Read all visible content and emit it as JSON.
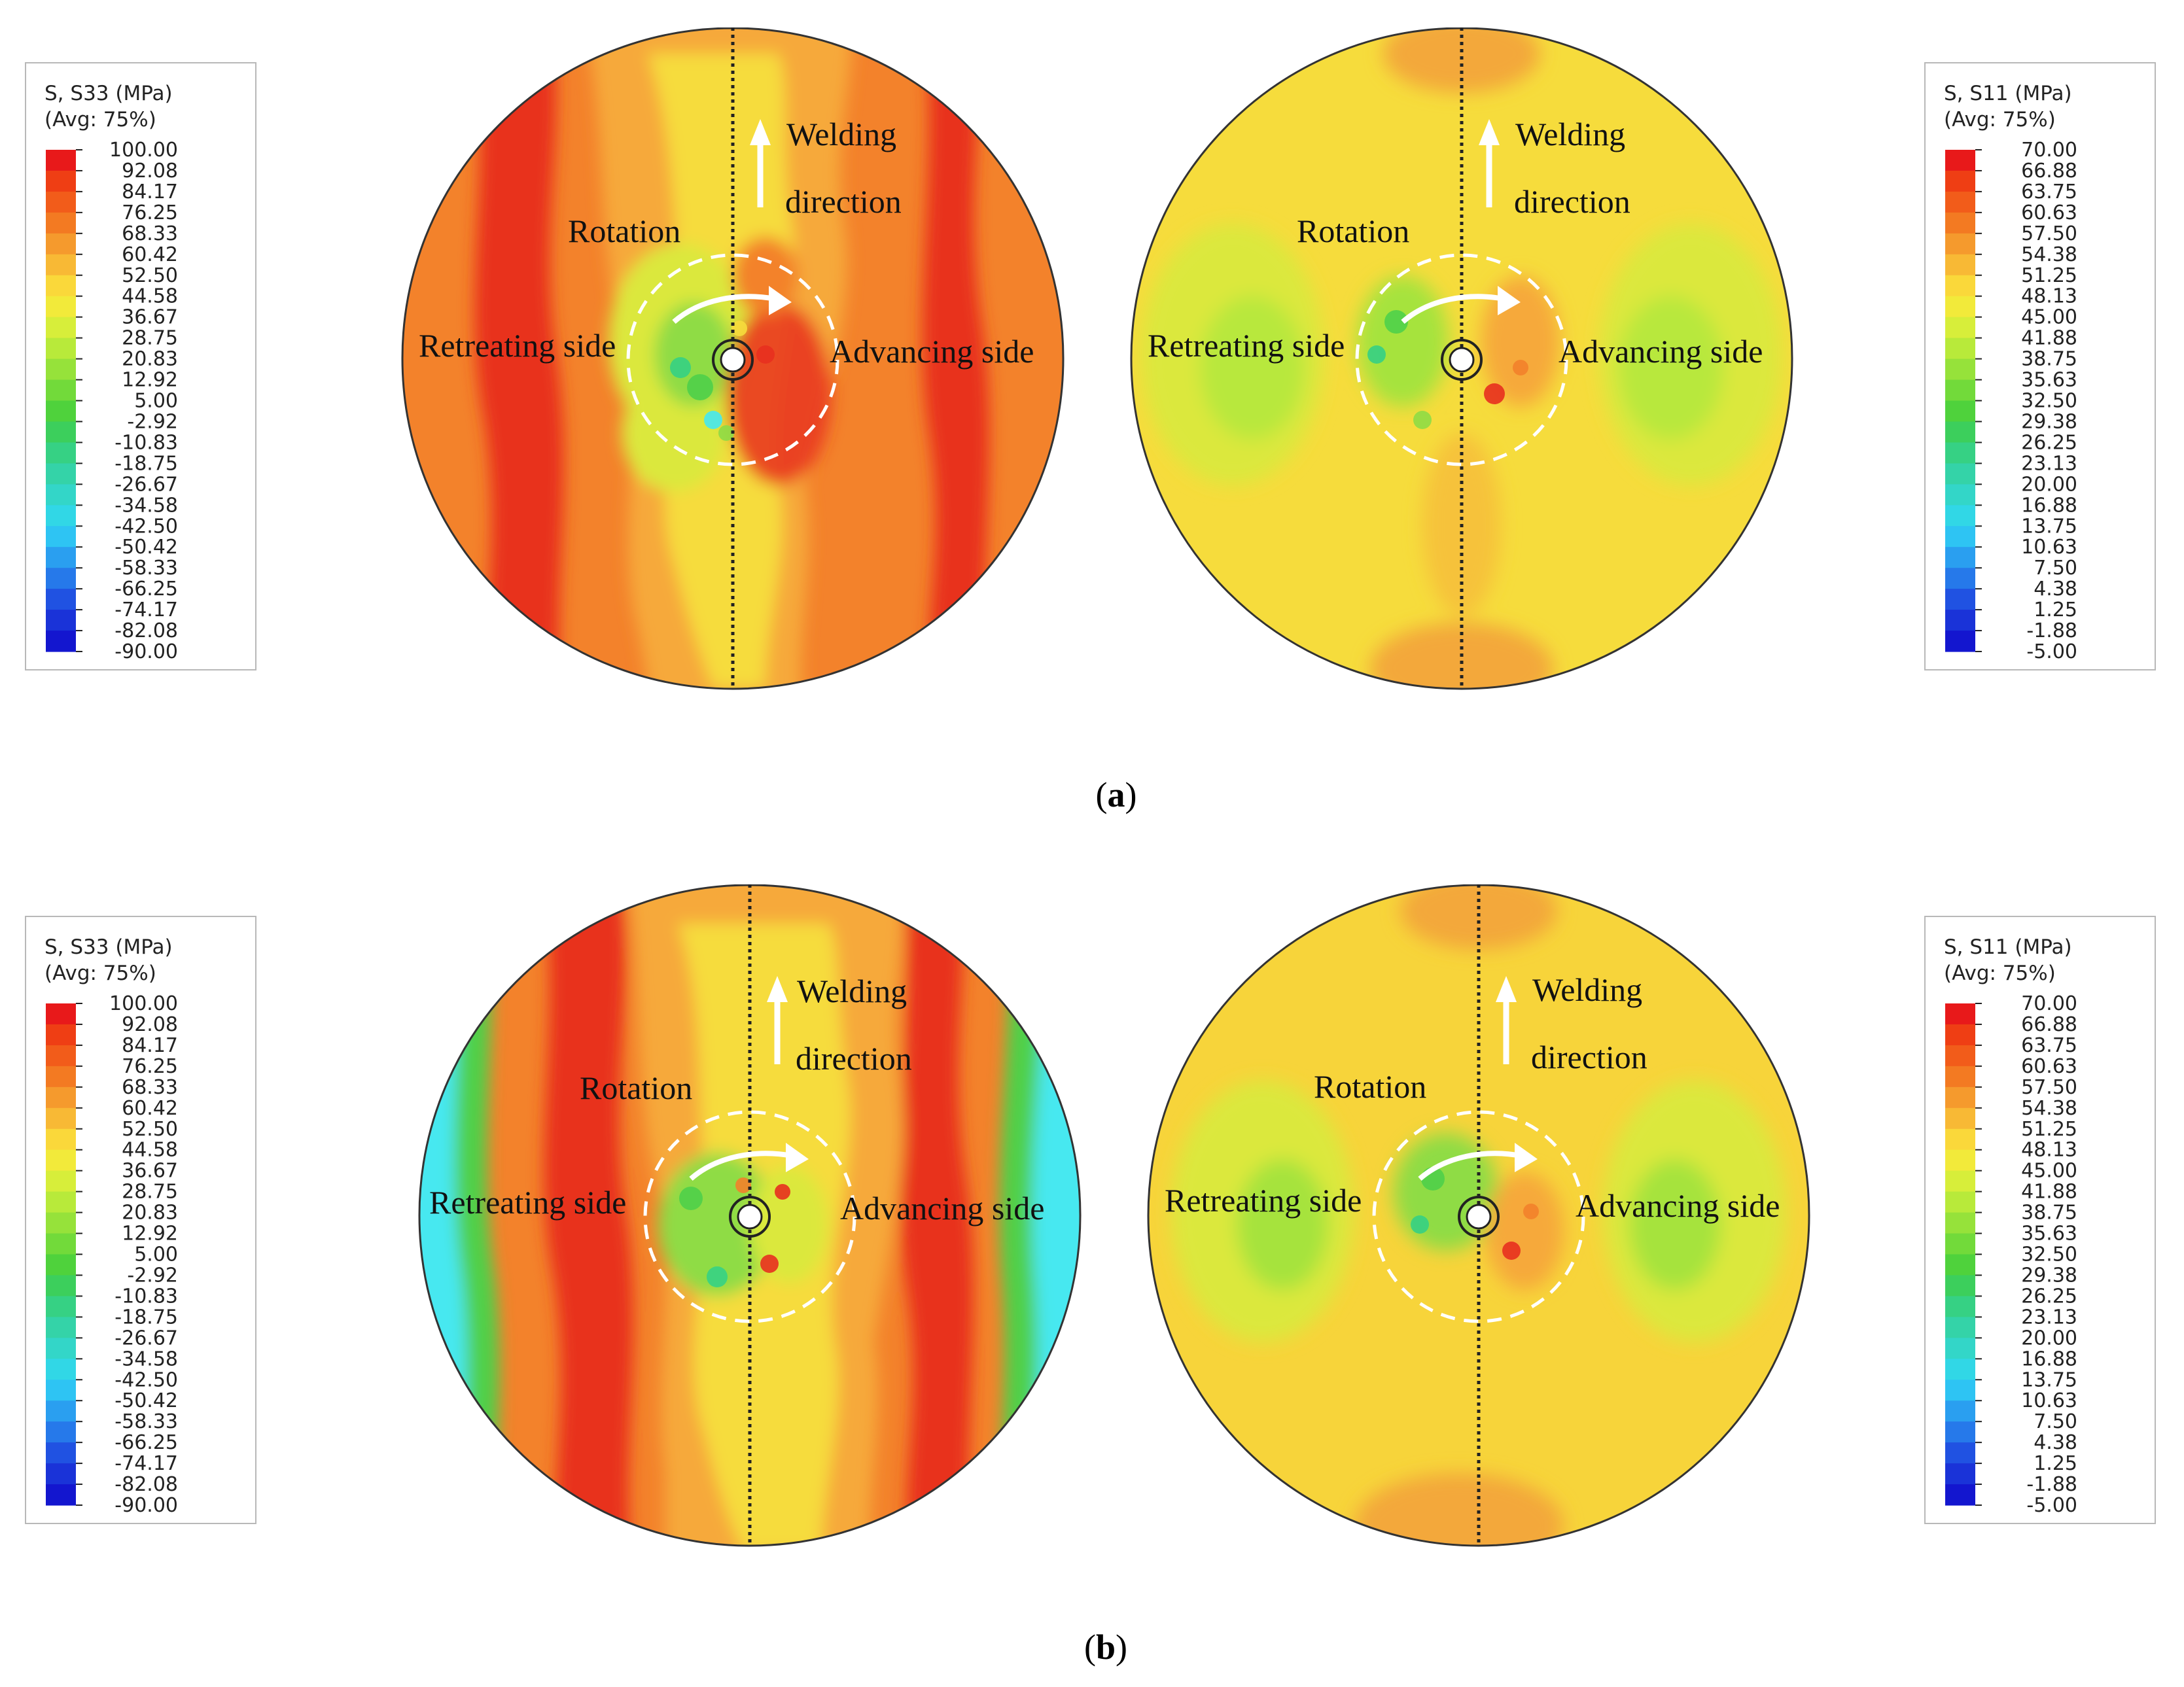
{
  "legend_s33": {
    "title_line1": "S, S33 (MPa)",
    "title_line2": "(Avg: 75%)",
    "ticks": [
      "100.00",
      "92.08",
      "84.17",
      "76.25",
      "68.33",
      "60.42",
      "52.50",
      "44.58",
      "36.67",
      "28.75",
      "20.83",
      "12.92",
      "5.00",
      "-2.92",
      "-10.83",
      "-18.75",
      "-26.67",
      "-34.58",
      "-42.50",
      "-50.42",
      "-58.33",
      "-66.25",
      "-74.17",
      "-82.08",
      "-90.00"
    ]
  },
  "legend_s11": {
    "title_line1": "S, S11 (MPa)",
    "title_line2": "(Avg: 75%)",
    "ticks": [
      "70.00",
      "66.88",
      "63.75",
      "60.63",
      "57.50",
      "54.38",
      "51.25",
      "48.13",
      "45.00",
      "41.88",
      "38.75",
      "35.63",
      "32.50",
      "29.38",
      "26.25",
      "23.13",
      "20.00",
      "16.88",
      "13.75",
      "10.63",
      "7.50",
      "4.38",
      "1.25",
      "-1.88",
      "-5.00"
    ]
  },
  "colorbar": [
    "#e8191a",
    "#ef3e14",
    "#f25c1a",
    "#f37a22",
    "#f59a2d",
    "#f8b935",
    "#fad83a",
    "#f2ea3a",
    "#d7ee3a",
    "#b8ea3a",
    "#96e23a",
    "#72da3a",
    "#4fd23c",
    "#3ccf5c",
    "#36d184",
    "#34d3a8",
    "#33d6c8",
    "#31d7e6",
    "#2ec4f3",
    "#2a9ff0",
    "#2679ea",
    "#2052e2",
    "#1a33d8",
    "#1316cf"
  ],
  "annotations": {
    "welding_line1": "Welding",
    "welding_line2": "direction",
    "rotation": "Rotation",
    "retreating": "Retreating side",
    "advancing": "Advancing side"
  },
  "captions": {
    "a": "a",
    "b": "b"
  },
  "colors": {
    "red": "#e8301f",
    "orange": "#f3822b",
    "light_orange": "#f6a93a",
    "yellow": "#f6dc3c",
    "yellow_green": "#dbe83e",
    "green": "#8fdc45",
    "bright_green": "#4fd04a",
    "cyan": "#46e8f0"
  }
}
